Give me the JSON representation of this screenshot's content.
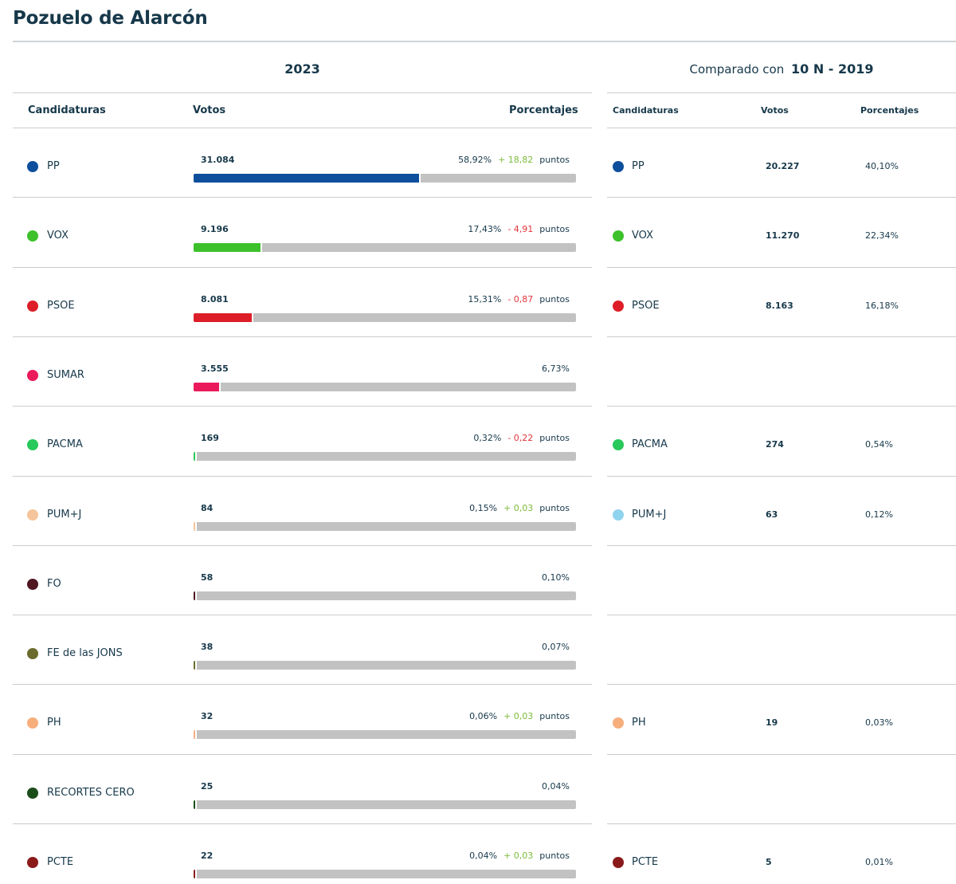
{
  "title": "Pozuelo de Alarcón",
  "year_label": "2023",
  "compare": {
    "prefix": "Comparado con",
    "election": "10 N - 2019"
  },
  "headers": {
    "candidaturas": "Candidaturas",
    "votos": "Votos",
    "porcentajes": "Porcentajes"
  },
  "unit_label": "puntos",
  "rows": [
    {
      "party": "PP",
      "color": "#0d4f9c",
      "votes": "31.084",
      "pct": "58,92%",
      "pct_value": 58.92,
      "delta": "+ 18,82",
      "delta_sign": "pos",
      "cmp_color": "#0d4f9c",
      "cmp_votes": "20.227",
      "cmp_pct": "40,10%"
    },
    {
      "party": "VOX",
      "color": "#3cc12b",
      "votes": "9.196",
      "pct": "17,43%",
      "pct_value": 17.43,
      "delta": "- 4,91",
      "delta_sign": "neg",
      "cmp_color": "#3cc12b",
      "cmp_votes": "11.270",
      "cmp_pct": "22,34%"
    },
    {
      "party": "PSOE",
      "color": "#dd1e28",
      "votes": "8.081",
      "pct": "15,31%",
      "pct_value": 15.31,
      "delta": "- 0,87",
      "delta_sign": "neg",
      "cmp_color": "#dd1e28",
      "cmp_votes": "8.163",
      "cmp_pct": "16,18%"
    },
    {
      "party": "SUMAR",
      "color": "#ea1a5c",
      "votes": "3.555",
      "pct": "6,73%",
      "pct_value": 6.73,
      "delta": "",
      "delta_sign": "",
      "cmp_color": "",
      "cmp_votes": "",
      "cmp_pct": ""
    },
    {
      "party": "PACMA",
      "color": "#27c95a",
      "votes": "169",
      "pct": "0,32%",
      "pct_value": 0.32,
      "delta": "- 0,22",
      "delta_sign": "neg",
      "cmp_color": "#27c95a",
      "cmp_votes": "274",
      "cmp_pct": "0,54%"
    },
    {
      "party": "PUM+J",
      "color": "#f5c49a",
      "votes": "84",
      "pct": "0,15%",
      "pct_value": 0.15,
      "delta": "+ 0,03",
      "delta_sign": "pos",
      "cmp_color": "#8fd3ee",
      "cmp_votes": "63",
      "cmp_pct": "0,12%"
    },
    {
      "party": "FO",
      "color": "#4f1620",
      "votes": "58",
      "pct": "0,10%",
      "pct_value": 0.1,
      "delta": "",
      "delta_sign": "",
      "cmp_color": "",
      "cmp_votes": "",
      "cmp_pct": ""
    },
    {
      "party": "FE de las JONS",
      "color": "#6b6b2e",
      "votes": "38",
      "pct": "0,07%",
      "pct_value": 0.07,
      "delta": "",
      "delta_sign": "",
      "cmp_color": "",
      "cmp_votes": "",
      "cmp_pct": ""
    },
    {
      "party": "PH",
      "color": "#f7ae7d",
      "votes": "32",
      "pct": "0,06%",
      "pct_value": 0.06,
      "delta": "+ 0,03",
      "delta_sign": "pos",
      "cmp_color": "#f7ae7d",
      "cmp_votes": "19",
      "cmp_pct": "0,03%"
    },
    {
      "party": "RECORTES CERO",
      "color": "#1b4d1b",
      "votes": "25",
      "pct": "0,04%",
      "pct_value": 0.04,
      "delta": "",
      "delta_sign": "",
      "cmp_color": "",
      "cmp_votes": "",
      "cmp_pct": ""
    },
    {
      "party": "PCTE",
      "color": "#8a1a1a",
      "votes": "22",
      "pct": "0,04%",
      "pct_value": 0.04,
      "delta": "+ 0,03",
      "delta_sign": "pos",
      "cmp_color": "#8a1a1a",
      "cmp_votes": "5",
      "cmp_pct": "0,01%"
    }
  ]
}
